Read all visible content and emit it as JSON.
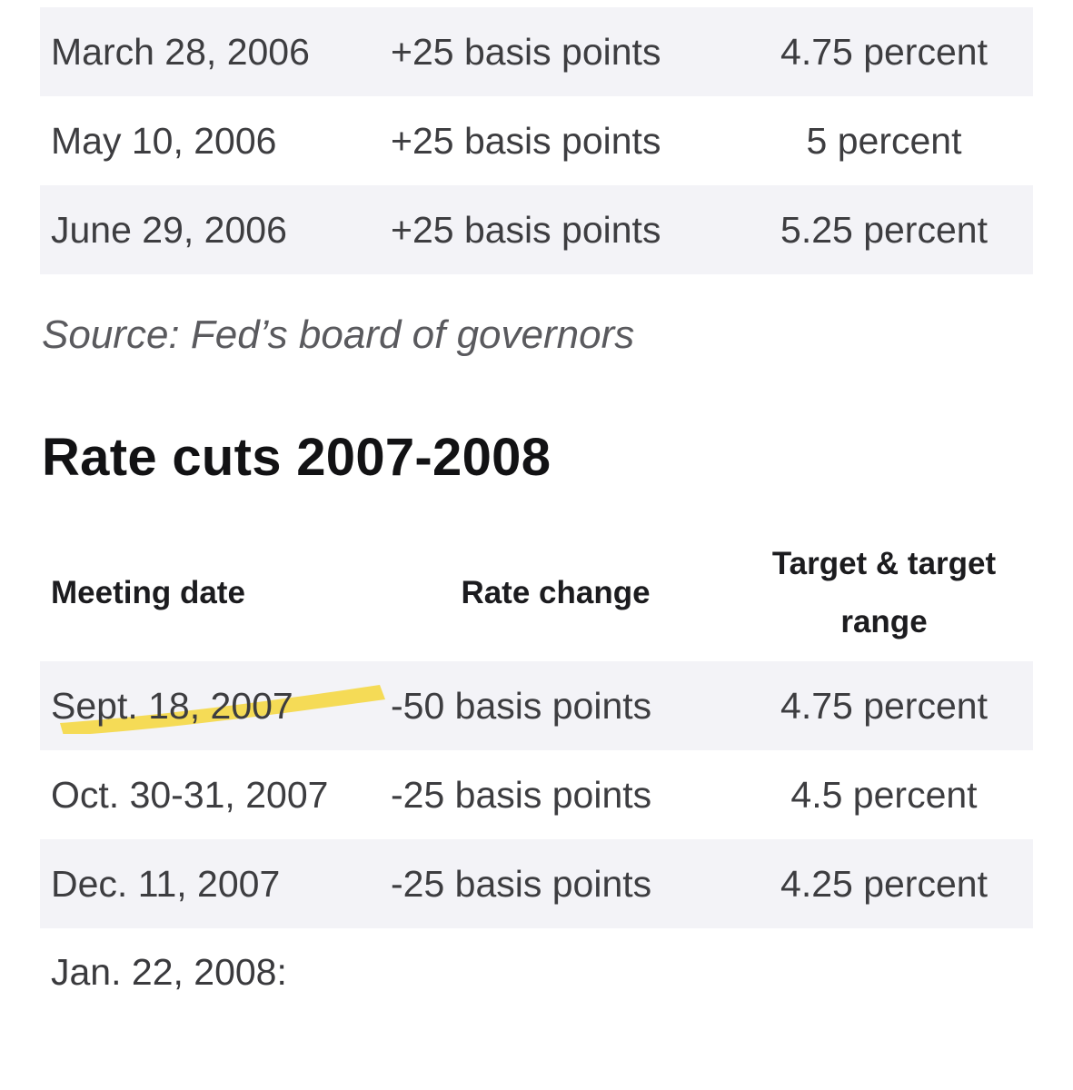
{
  "top_table": {
    "rows": [
      {
        "date": "March 28, 2006",
        "change": "+25 basis points",
        "target": "4.75 percent"
      },
      {
        "date": "May 10, 2006",
        "change": "+25 basis points",
        "target": "5 percent"
      },
      {
        "date": "June 29, 2006",
        "change": "+25 basis points",
        "target": "5.25 percent"
      }
    ]
  },
  "source": "Source: Fed’s board of governors",
  "section_title": "Rate cuts 2007-2008",
  "cuts_table": {
    "headers": {
      "date": "Meeting date",
      "change": "Rate change",
      "target": "Target & target range"
    },
    "rows": [
      {
        "date": "Sept. 18, 2007",
        "change": "-50 basis points",
        "target": "4.75 percent",
        "highlighted": true
      },
      {
        "date": "Oct. 30-31, 2007",
        "change": "-25 basis points",
        "target": "4.5 percent"
      },
      {
        "date": "Dec. 11, 2007",
        "change": "-25 basis points",
        "target": "4.25 percent"
      },
      {
        "date": "Jan. 22, 2008:",
        "change": "",
        "target": ""
      }
    ]
  },
  "colors": {
    "row_shade": "#f3f3f7",
    "highlight": "#f5d63a"
  }
}
